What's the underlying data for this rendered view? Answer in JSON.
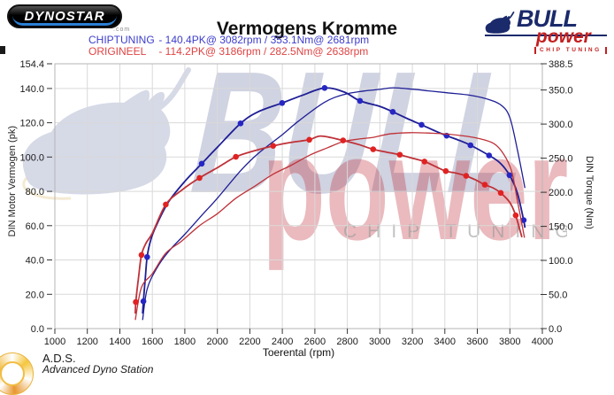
{
  "header": {
    "title": "Vermogens Kromme",
    "dynostar": {
      "text": "DYNOSTAR",
      "domain": ".com"
    },
    "bull_logo": {
      "name_top": "BULL",
      "name_bottom": "power",
      "tagline": "CHIP TUNING",
      "blue": "#1b2a6b",
      "red": "#c41f1f"
    }
  },
  "legend": {
    "rows": [
      {
        "label": "CHIPTUNING",
        "detail": "- 140.4PK@ 3082rpm / 353.1Nm@ 2681rpm",
        "color": "#3d3dcc"
      },
      {
        "label": "ORIGINEEL",
        "detail": "- 114.2PK@ 3186rpm / 282.5Nm@ 2638rpm",
        "color": "#e04343"
      }
    ]
  },
  "watermark": {
    "bull": "BULL",
    "power": "power",
    "tagline": "CHIP TUNING"
  },
  "footer": {
    "ads_abbr": "A.D.S.",
    "ads_full": "Advanced Dyno Station"
  },
  "chart_data": {
    "type": "line",
    "title": "Vermogens Kromme",
    "xlabel": "Toerental (rpm)",
    "ylabel_left": "DIN Motor Vermogen (pk)",
    "ylabel_right": "DIN Torque (Nm)",
    "xlim": [
      1000,
      4000
    ],
    "x_ticks": [
      1000,
      1200,
      1400,
      1600,
      1800,
      2000,
      2200,
      2400,
      2600,
      2800,
      3000,
      3200,
      3400,
      3600,
      3800,
      4000
    ],
    "left_axis": {
      "max": 154.4,
      "ticks": [
        "154.4",
        "140.0",
        "120.0",
        "100.0",
        "80.0",
        "60.0",
        "40.0",
        "20.0",
        "0.0"
      ]
    },
    "right_axis": {
      "max": 388.5,
      "ticks": [
        "388.5",
        "350.0",
        "300.0",
        "250.0",
        "200.0",
        "150.0",
        "100.0",
        "50.0",
        "0.0"
      ]
    },
    "grid": true,
    "grid_color": "#d9d9d9",
    "peaks": {
      "chiptuning": {
        "power_pk": 140.4,
        "power_rpm": 3082,
        "torque_nm": 353.1,
        "torque_rpm": 2681
      },
      "origineel": {
        "power_pk": 114.2,
        "power_rpm": 3186,
        "torque_nm": 282.5,
        "torque_rpm": 2638
      }
    },
    "series": [
      {
        "name": "chiptuning-power",
        "axis": "left",
        "color": "#1e1e96",
        "width": 1.3,
        "marker_color": "#2626c4",
        "points": [
          [
            1540,
            5
          ],
          [
            1568,
            23
          ],
          [
            1626,
            35
          ],
          [
            1700,
            45
          ],
          [
            1800,
            55
          ],
          [
            1904,
            66
          ],
          [
            2000,
            76
          ],
          [
            2143,
            92
          ],
          [
            2250,
            102
          ],
          [
            2399,
            113
          ],
          [
            2500,
            121
          ],
          [
            2660,
            132
          ],
          [
            2780,
            136.5
          ],
          [
            2900,
            138.5
          ],
          [
            3000,
            139.5
          ],
          [
            3082,
            140.4
          ],
          [
            3200,
            139.6
          ],
          [
            3300,
            138.6
          ],
          [
            3411,
            137.5
          ],
          [
            3558,
            136
          ],
          [
            3672,
            133.5
          ],
          [
            3750,
            130
          ],
          [
            3800,
            123
          ],
          [
            3845,
            105
          ],
          [
            3893,
            82
          ]
        ]
      },
      {
        "name": "chiptuning-torque",
        "axis": "right",
        "color": "#1e1e96",
        "width": 1.8,
        "marker_color": "#2626c4",
        "points": [
          [
            1540,
            22,
            0
          ],
          [
            1545,
            40,
            1
          ],
          [
            1557,
            75,
            0
          ],
          [
            1568,
            105,
            1
          ],
          [
            1590,
            130,
            0
          ],
          [
            1626,
            152,
            0
          ],
          [
            1700,
            186,
            0
          ],
          [
            1800,
            216,
            0
          ],
          [
            1904,
            242,
            1
          ],
          [
            2000,
            266,
            0
          ],
          [
            2143,
            301,
            1
          ],
          [
            2250,
            318,
            0
          ],
          [
            2399,
            331,
            1
          ],
          [
            2520,
            342,
            0
          ],
          [
            2660,
            353,
            1
          ],
          [
            2780,
            347,
            0
          ],
          [
            2878,
            334,
            1
          ],
          [
            3000,
            326,
            0
          ],
          [
            3080,
            318,
            1
          ],
          [
            3170,
            308,
            0
          ],
          [
            3257,
            299,
            1
          ],
          [
            3340,
            290,
            0
          ],
          [
            3411,
            283,
            1
          ],
          [
            3490,
            276,
            0
          ],
          [
            3558,
            269,
            1
          ],
          [
            3672,
            254,
            1
          ],
          [
            3740,
            243,
            0
          ],
          [
            3798,
            225,
            1
          ],
          [
            3845,
            200,
            0
          ],
          [
            3885,
            159,
            1
          ],
          [
            3893,
            148,
            0
          ]
        ]
      },
      {
        "name": "origineel-power",
        "axis": "left",
        "color": "#bf3138",
        "width": 1.3,
        "marker_color": "#e02222",
        "points": [
          [
            1495,
            5
          ],
          [
            1533,
            24
          ],
          [
            1600,
            32
          ],
          [
            1683,
            44
          ],
          [
            1780,
            51
          ],
          [
            1890,
            60
          ],
          [
            2000,
            67
          ],
          [
            2114,
            76
          ],
          [
            2230,
            83
          ],
          [
            2343,
            90
          ],
          [
            2450,
            95
          ],
          [
            2566,
            101
          ],
          [
            2680,
            105.5
          ],
          [
            2774,
            109
          ],
          [
            2870,
            110.5
          ],
          [
            2959,
            111.5
          ],
          [
            3060,
            113.5
          ],
          [
            3186,
            114.2
          ],
          [
            3300,
            114
          ],
          [
            3400,
            113.5
          ],
          [
            3500,
            112.5
          ],
          [
            3600,
            111
          ],
          [
            3700,
            108
          ],
          [
            3760,
            102
          ],
          [
            3810,
            92
          ],
          [
            3850,
            73
          ],
          [
            3890,
            53
          ]
        ]
      },
      {
        "name": "origineel-torque",
        "axis": "right",
        "color": "#bf3138",
        "width": 1.8,
        "marker_color": "#e02222",
        "points": [
          [
            1495,
            22,
            0
          ],
          [
            1498,
            39,
            1
          ],
          [
            1515,
            75,
            0
          ],
          [
            1533,
            108,
            1
          ],
          [
            1560,
            125,
            0
          ],
          [
            1600,
            140,
            0
          ],
          [
            1683,
            182,
            1
          ],
          [
            1780,
            203,
            0
          ],
          [
            1890,
            221,
            1
          ],
          [
            2000,
            236,
            0
          ],
          [
            2114,
            252,
            1
          ],
          [
            2230,
            261,
            0
          ],
          [
            2343,
            268,
            1
          ],
          [
            2450,
            273,
            0
          ],
          [
            2566,
            277,
            1
          ],
          [
            2638,
            282.5,
            0
          ],
          [
            2774,
            276,
            1
          ],
          [
            2870,
            270,
            0
          ],
          [
            2959,
            263,
            1
          ],
          [
            3040,
            259,
            0
          ],
          [
            3123,
            255,
            1
          ],
          [
            3200,
            250,
            0
          ],
          [
            3275,
            245,
            1
          ],
          [
            3340,
            238,
            0
          ],
          [
            3406,
            231,
            1
          ],
          [
            3470,
            228,
            0
          ],
          [
            3531,
            224,
            1
          ],
          [
            3590,
            218,
            0
          ],
          [
            3646,
            211,
            1
          ],
          [
            3700,
            206,
            0
          ],
          [
            3744,
            199,
            1
          ],
          [
            3800,
            185,
            0
          ],
          [
            3836,
            166,
            1
          ],
          [
            3874,
            134,
            0
          ]
        ]
      }
    ]
  }
}
